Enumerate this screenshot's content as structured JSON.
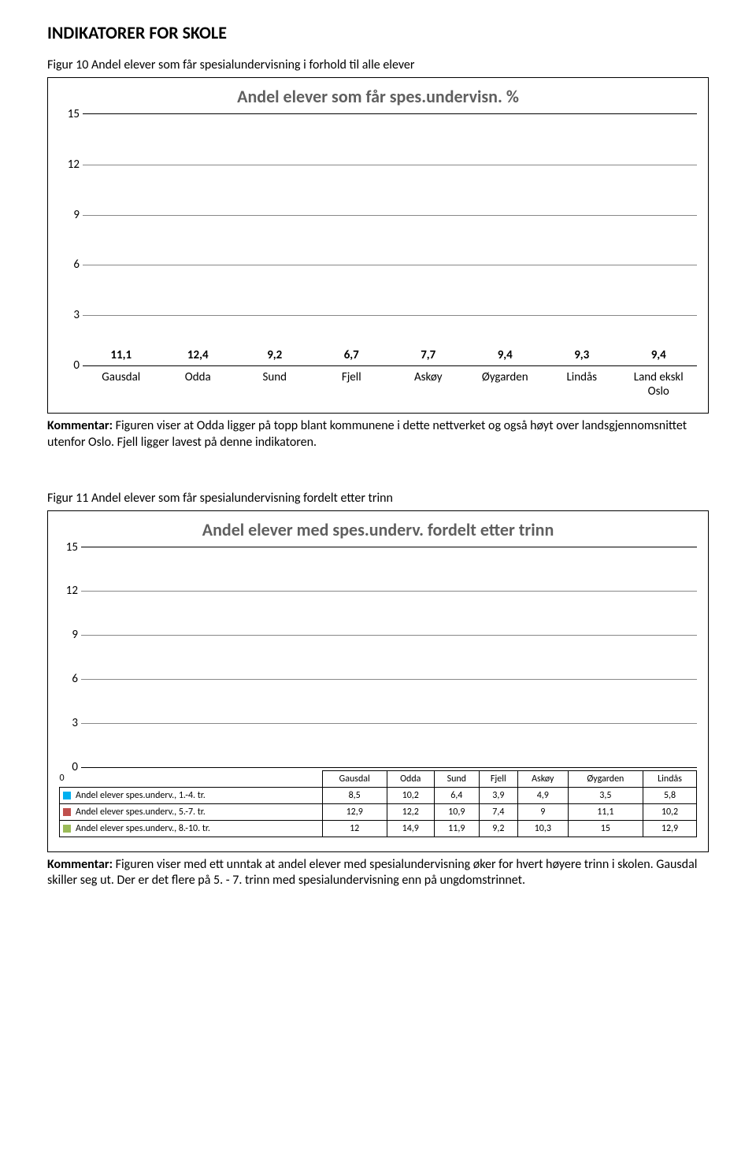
{
  "title": "INDIKATORER FOR SKOLE",
  "figure1": {
    "caption": "Figur 10 Andel elever som får spesialundervisning i forhold til alle elever",
    "chart_title": "Andel elever som får spes.undervisn. %",
    "type": "bar",
    "ymax": 15,
    "ytick_step": 3,
    "yticks": [
      "15",
      "12",
      "9",
      "6",
      "3",
      "0"
    ],
    "bar_color": "#00b0f0",
    "grid_color": "#888888",
    "axis_color": "#000000",
    "title_color": "#5f5f5f",
    "categories": [
      "Gausdal",
      "Odda",
      "Sund",
      "Fjell",
      "Askøy",
      "Øygarden",
      "Lindås",
      "Land ekskl\nOslo"
    ],
    "labels": [
      "11,1",
      "12,4",
      "9,2",
      "6,7",
      "7,7",
      "9,4",
      "9,3",
      "9,4"
    ],
    "values": [
      11.1,
      12.4,
      9.2,
      6.7,
      7.7,
      9.4,
      9.3,
      9.4
    ]
  },
  "comment1_label": "Kommentar:",
  "comment1": " Figuren viser at Odda ligger på topp blant kommunene i dette nettverket og også høyt over landsgjennomsnittet utenfor Oslo. Fjell ligger lavest på denne indikatoren.",
  "figure2": {
    "caption": "Figur 11 Andel elever som får spesialundervisning fordelt etter trinn",
    "chart_title": "Andel elever med spes.underv. fordelt  etter trinn",
    "type": "grouped-bar",
    "ymax": 15,
    "ytick_step": 3,
    "yticks": [
      "15",
      "12",
      "9",
      "6",
      "3",
      "0"
    ],
    "grid_color": "#888888",
    "title_color": "#5f5f5f",
    "categories": [
      "Gausdal",
      "Odda",
      "Sund",
      "Fjell",
      "Askøy",
      "Øygarden",
      "Lindås"
    ],
    "series": [
      {
        "name": "Andel elever spes.underv., 1.-4. tr.",
        "color": "#00b0f0",
        "values": [
          8.5,
          10.2,
          6.4,
          3.9,
          4.9,
          3.5,
          5.8
        ],
        "labels": [
          "8,5",
          "10,2",
          "6,4",
          "3,9",
          "4,9",
          "3,5",
          "5,8"
        ]
      },
      {
        "name": "Andel elever spes.underv., 5.-7. tr.",
        "color": "#c0504d",
        "values": [
          12.9,
          12.2,
          10.9,
          7.4,
          9.0,
          11.1,
          10.2
        ],
        "labels": [
          "12,9",
          "12,2",
          "10,9",
          "7,4",
          "9",
          "11,1",
          "10,2"
        ]
      },
      {
        "name": "Andel elever spes.underv., 8.-10. tr.",
        "color": "#9bbb59",
        "values": [
          12.0,
          14.9,
          11.9,
          9.2,
          10.3,
          15.0,
          12.9
        ],
        "labels": [
          "12",
          "14,9",
          "11,9",
          "9,2",
          "10,3",
          "15",
          "12,9"
        ]
      }
    ]
  },
  "comment2_label": "Kommentar:",
  "comment2": " Figuren viser med ett unntak at andel elever med spesialundervisning øker for hvert høyere trinn i skolen. Gausdal skiller seg ut. Der er det flere på 5. - 7. trinn med spesialundervisning enn på ungdomstrinnet."
}
